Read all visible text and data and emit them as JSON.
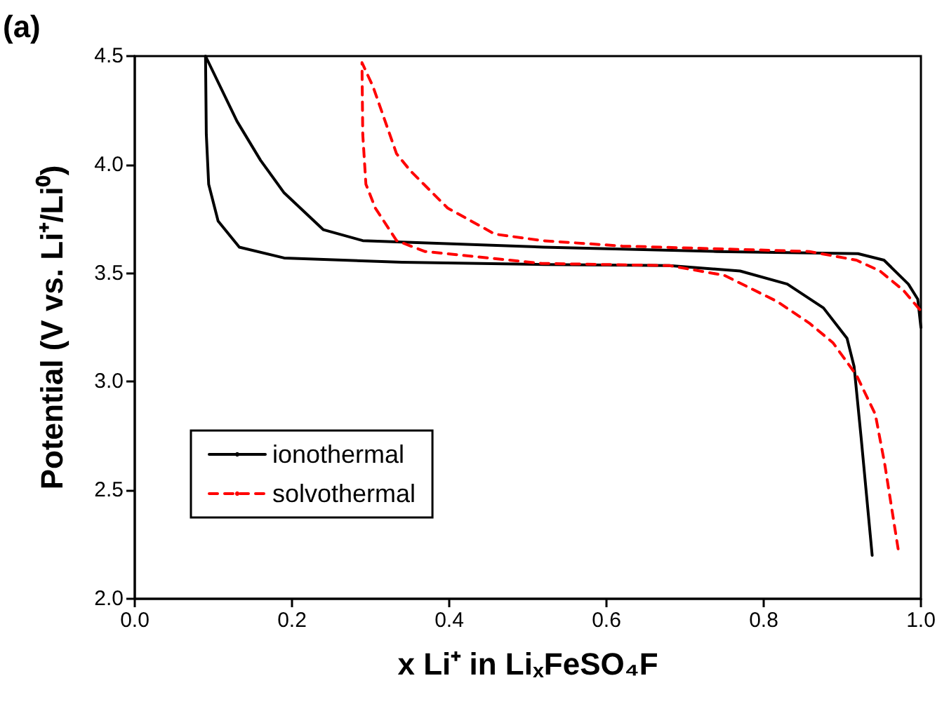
{
  "chart_data": {
    "type": "line",
    "xlabel": "x Li⁺ in Li$_{x}$FeSO₄F",
    "ylabel": "Potential (V vs. Li⁺/Li⁰)",
    "annotations": [
      "(a)"
    ],
    "xlim": [
      0,
      1
    ],
    "xticks": [
      {
        "value": 0,
        "label": "0.0"
      },
      {
        "value": 0.2,
        "label": "0.2"
      },
      {
        "value": 0.4,
        "label": "0.4"
      },
      {
        "value": 0.6,
        "label": "0.6"
      },
      {
        "value": 0.8,
        "label": "0.8"
      },
      {
        "value": 1,
        "label": "1.0"
      }
    ],
    "ylim": [
      2,
      4.5
    ],
    "yticks": [
      {
        "value": 2,
        "label": "2.0"
      },
      {
        "value": 2.5,
        "label": "2.5"
      },
      {
        "value": 3,
        "label": "3.0"
      },
      {
        "value": 3.5,
        "label": "3.5"
      },
      {
        "value": 4,
        "label": "4.0"
      },
      {
        "value": 4.5,
        "label": "4.5"
      }
    ],
    "grid": false,
    "legend": "bottom left",
    "marker": "none",
    "series": [
      {
        "name": "ionothermal",
        "color": "#000000",
        "line_style": "solid",
        "x": [
          0.938,
          0.924,
          0.915,
          0.906,
          0.876,
          0.83,
          0.77,
          0.68,
          0.52,
          0.34,
          0.19,
          0.133,
          0.106,
          0.094,
          0.091,
          0.09,
          0.13,
          0.16,
          0.19,
          0.24,
          0.29,
          0.52,
          0.74,
          0.92,
          0.953,
          0.984,
          0.996,
          1.0
        ],
        "values": [
          2.2,
          2.74,
          3.07,
          3.2,
          3.34,
          3.45,
          3.51,
          3.535,
          3.54,
          3.55,
          3.57,
          3.62,
          3.74,
          3.91,
          4.14,
          4.5,
          4.2,
          4.02,
          3.87,
          3.7,
          3.65,
          3.62,
          3.6,
          3.59,
          3.56,
          3.45,
          3.38,
          3.25
        ]
      },
      {
        "name": "solvothermal",
        "color": "#ff0000",
        "line_style": "dashed",
        "x": [
          0.971,
          0.954,
          0.942,
          0.918,
          0.888,
          0.858,
          0.817,
          0.75,
          0.68,
          0.518,
          0.369,
          0.333,
          0.306,
          0.294,
          0.29,
          0.289,
          0.303,
          0.333,
          0.351,
          0.398,
          0.458,
          0.518,
          0.62,
          0.858,
          0.918,
          0.948,
          0.978,
          0.999
        ],
        "values": [
          2.23,
          2.62,
          2.85,
          3.03,
          3.18,
          3.27,
          3.37,
          3.49,
          3.535,
          3.545,
          3.6,
          3.65,
          3.8,
          3.91,
          4.14,
          4.47,
          4.36,
          4.05,
          3.97,
          3.8,
          3.68,
          3.65,
          3.625,
          3.6,
          3.56,
          3.51,
          3.42,
          3.33
        ]
      }
    ]
  }
}
